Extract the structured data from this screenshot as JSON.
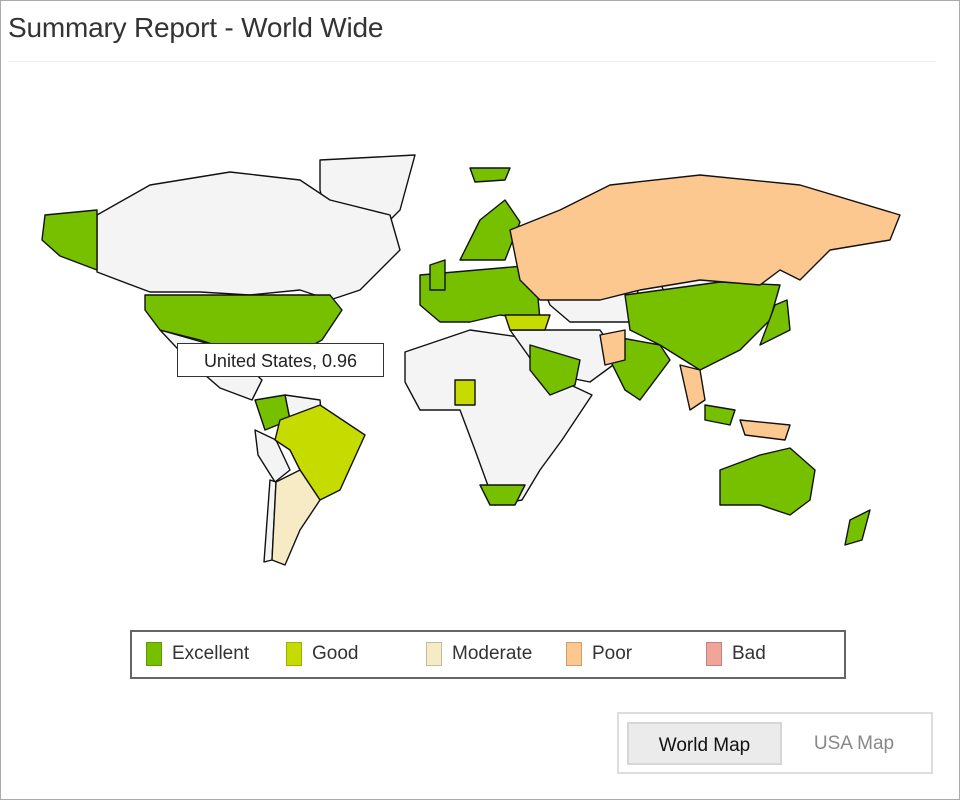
{
  "title": "Summary Report - World Wide",
  "tooltip": "United States, 0.96",
  "colors": {
    "excellent": "#77c000",
    "good": "#c6dc00",
    "moderate": "#f6ebc5",
    "poor": "#fdc88f",
    "bad": "#f0a49a",
    "no_data": "#f4f4f4"
  },
  "legend": [
    {
      "label": "Excellent",
      "color": "#77c000"
    },
    {
      "label": "Good",
      "color": "#c6dc00"
    },
    {
      "label": "Moderate",
      "color": "#f6ebc5"
    },
    {
      "label": "Poor",
      "color": "#fdc88f"
    },
    {
      "label": "Bad",
      "color": "#f0a49a"
    }
  ],
  "regions": [
    {
      "name": "United States",
      "category": "excellent",
      "value": 0.96
    },
    {
      "name": "Brazil",
      "category": "good"
    },
    {
      "name": "Argentina",
      "category": "moderate"
    },
    {
      "name": "Russia",
      "category": "poor"
    },
    {
      "name": "China",
      "category": "excellent"
    },
    {
      "name": "India",
      "category": "excellent"
    },
    {
      "name": "Australia",
      "category": "excellent"
    }
  ],
  "toggle": {
    "world": "World Map",
    "usa": "USA Map"
  }
}
